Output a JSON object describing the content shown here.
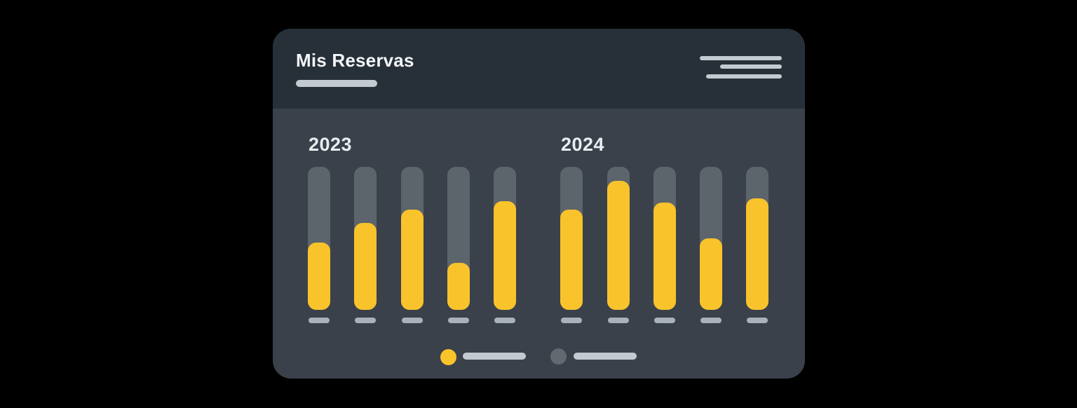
{
  "header": {
    "title": "Mis Reservas"
  },
  "menu": {
    "icon": "hamburger-lines-icon"
  },
  "colors": {
    "page_bg": "#000000",
    "card_bg": "#3A414A",
    "header_bg": "#273039",
    "bar_track": "#5C646C",
    "bar_fill": "#F9C32B",
    "accent_light": "#C3CAD2",
    "tick": "#A9B1BA",
    "legend_dot_alt": "#626970",
    "title_text": "#F4F6F8",
    "year_text": "#E9EDF0"
  },
  "chart_data": {
    "type": "bar",
    "title": "Mis Reservas",
    "groups": [
      "2023",
      "2024"
    ],
    "bars_per_group": 5,
    "value_unit": "percent of track filled",
    "ylim": [
      0,
      100
    ],
    "grid": false,
    "legend_position": "bottom-center",
    "series": [
      {
        "name": "2023",
        "values": [
          47,
          61,
          70,
          33,
          76
        ]
      },
      {
        "name": "2024",
        "values": [
          70,
          90,
          75,
          50,
          78
        ]
      }
    ],
    "legend": [
      {
        "swatch_color": "#F9C32B",
        "label_style": "placeholder-line"
      },
      {
        "swatch_color": "#626970",
        "label_style": "placeholder-line"
      }
    ]
  }
}
